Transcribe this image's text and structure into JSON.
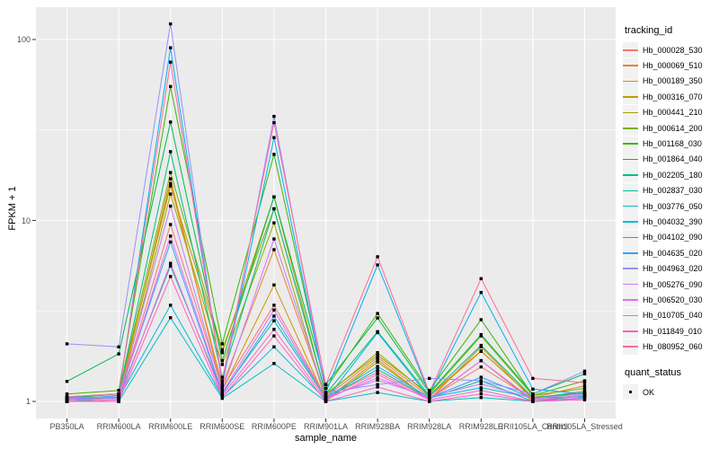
{
  "figure": {
    "panel_bg": "#EBEBEB",
    "grid_color": "#FFFFFF",
    "tick_mark_color": "#333333",
    "tick_label_color": "#4D4D4D",
    "point_color": "#000000"
  },
  "chart_data": {
    "type": "line",
    "title": "",
    "xlabel": "sample_name",
    "ylabel": "FPKM + 1",
    "y_scale": "log10",
    "y_ticks": [
      "1",
      "10",
      "100"
    ],
    "y_tick_values": [
      1,
      10,
      100
    ],
    "ylim_log": [
      -0.095,
      2.18
    ],
    "grid": "major-and-minor",
    "legend_position": "right",
    "categories": [
      "PB350LA",
      "RRIM600LA",
      "RRIM600LE",
      "RRIM600SE",
      "RRIM600PE",
      "RRIM901LA",
      "RRIM928BA",
      "RRIM928LA",
      "RRIM928LE",
      "RRII105LA_Control",
      "RRII105LA_Stressed"
    ],
    "legend": {
      "color_title": "tracking_id",
      "shape_title": "quant_status",
      "shape_items": [
        {
          "label": "OK"
        }
      ]
    },
    "series": [
      {
        "name": "Hb_000028_530",
        "color": "#F8766D",
        "values": [
          1.05,
          1.04,
          9.5,
          1.18,
          3.4,
          1.05,
          1.45,
          1.04,
          1.55,
          1.03,
          1.12
        ]
      },
      {
        "name": "Hb_000069_510",
        "color": "#EA8331",
        "values": [
          1.02,
          1.05,
          16.0,
          1.22,
          6.9,
          1.06,
          1.75,
          1.06,
          1.89,
          1.05,
          1.22
        ]
      },
      {
        "name": "Hb_000189_350",
        "color": "#D89000",
        "values": [
          1.0,
          1.02,
          17.0,
          1.15,
          4.4,
          1.02,
          1.7,
          1.02,
          2.0,
          1.02,
          1.08
        ]
      },
      {
        "name": "Hb_000316_070",
        "color": "#C09B00",
        "values": [
          1.04,
          1.1,
          15.5,
          1.86,
          13.5,
          1.08,
          1.86,
          1.08,
          1.9,
          1.04,
          1.14
        ]
      },
      {
        "name": "Hb_000441_210",
        "color": "#A3A500",
        "values": [
          1.0,
          1.0,
          14.0,
          1.6,
          9.7,
          1.0,
          1.65,
          1.03,
          1.68,
          1.0,
          1.08
        ]
      },
      {
        "name": "Hb_000614_200",
        "color": "#7CAE00",
        "values": [
          1.06,
          1.1,
          18.4,
          1.93,
          11.6,
          1.1,
          1.8,
          1.1,
          2.3,
          1.08,
          1.18
        ]
      },
      {
        "name": "Hb_001168_030",
        "color": "#39B600",
        "values": [
          1.1,
          1.15,
          55.0,
          2.08,
          23.2,
          1.18,
          3.06,
          1.15,
          2.83,
          1.08,
          1.3
        ]
      },
      {
        "name": "Hb_001864_040",
        "color": "#00BB4E",
        "values": [
          1.29,
          1.83,
          35.0,
          1.68,
          13.5,
          1.24,
          2.89,
          1.12,
          2.34,
          1.1,
          1.42
        ]
      },
      {
        "name": "Hb_002205_180",
        "color": "#00BF7D",
        "values": [
          1.05,
          1.1,
          24.0,
          1.36,
          11.6,
          1.1,
          2.43,
          1.08,
          2.04,
          1.05,
          1.12
        ]
      },
      {
        "name": "Hb_002837_030",
        "color": "#00C1A3",
        "values": [
          1.0,
          1.05,
          5.6,
          1.12,
          2.79,
          1.04,
          1.5,
          1.04,
          1.3,
          1.0,
          1.08
        ]
      },
      {
        "name": "Hb_003776_050",
        "color": "#00BFC4",
        "values": [
          1.0,
          1.0,
          2.9,
          1.04,
          1.62,
          1.0,
          1.12,
          1.0,
          1.05,
          1.0,
          1.04
        ]
      },
      {
        "name": "Hb_004032_390",
        "color": "#00BAE0",
        "values": [
          1.03,
          1.04,
          3.4,
          1.06,
          2.0,
          1.02,
          2.4,
          1.05,
          1.19,
          1.05,
          1.06
        ]
      },
      {
        "name": "Hb_004102_090",
        "color": "#00B0F6",
        "values": [
          1.02,
          1.08,
          90.0,
          1.25,
          28.7,
          1.12,
          5.68,
          1.1,
          4.0,
          1.17,
          1.1
        ]
      },
      {
        "name": "Hb_004635_020",
        "color": "#35A2FF",
        "values": [
          1.05,
          1.06,
          7.6,
          1.1,
          2.96,
          1.05,
          1.56,
          1.05,
          1.36,
          1.04,
          1.1
        ]
      },
      {
        "name": "Hb_004963_020",
        "color": "#9590FF",
        "values": [
          2.08,
          2.0,
          122.0,
          1.2,
          37.6,
          1.12,
          1.24,
          1.34,
          1.3,
          1.1,
          1.47
        ]
      },
      {
        "name": "Hb_005276_090",
        "color": "#C77CFF",
        "values": [
          1.04,
          1.06,
          12.0,
          1.15,
          7.9,
          1.06,
          1.31,
          1.06,
          1.25,
          1.04,
          1.1
        ]
      },
      {
        "name": "Hb_006520_030",
        "color": "#E76BF3",
        "values": [
          1.02,
          1.04,
          8.2,
          1.12,
          3.2,
          1.04,
          1.35,
          1.04,
          1.68,
          1.02,
          1.08
        ]
      },
      {
        "name": "Hb_010705_040",
        "color": "#FA62DB",
        "values": [
          1.0,
          1.02,
          5.8,
          1.08,
          2.5,
          1.02,
          1.41,
          1.02,
          1.15,
          1.0,
          1.05
        ]
      },
      {
        "name": "Hb_011849_010",
        "color": "#FF62BC",
        "values": [
          1.0,
          1.0,
          4.9,
          1.05,
          2.3,
          1.0,
          1.2,
          1.0,
          1.1,
          1.0,
          1.02
        ]
      },
      {
        "name": "Hb_080952_060",
        "color": "#FF6A98",
        "values": [
          1.06,
          1.1,
          75.0,
          1.3,
          34.7,
          1.24,
          6.3,
          1.12,
          4.77,
          1.34,
          1.27
        ]
      }
    ]
  }
}
